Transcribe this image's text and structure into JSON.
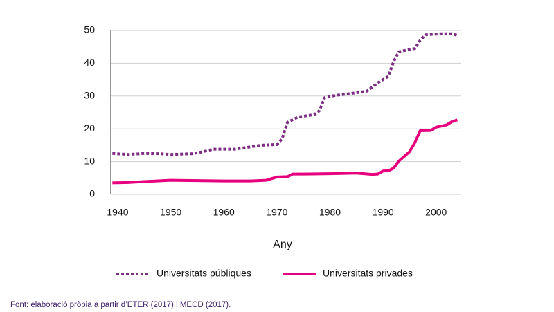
{
  "chart_data": {
    "type": "line",
    "x_label": "Any",
    "footnote": "Font: elaboració pròpia a partir d’ETER (2017) i MECD (2017).",
    "xlim": [
      1938.7,
      2004.6
    ],
    "xticks": [
      1940,
      1950,
      1960,
      1970,
      1980,
      1990,
      2000
    ],
    "ylim": [
      0,
      50
    ],
    "yticks": [
      0,
      10,
      20,
      30,
      40,
      50
    ],
    "grid": true,
    "series": [
      {
        "name": "Universitats públiques",
        "color": "#7b2d82",
        "style": "dotted",
        "x": [
          1939,
          1942,
          1945,
          1948,
          1950,
          1954,
          1956,
          1958,
          1962,
          1965,
          1967,
          1970,
          1971,
          1972,
          1974,
          1977,
          1978,
          1979,
          1981,
          1985,
          1987,
          1989,
          1991,
          1992,
          1993,
          1995,
          1996,
          1997,
          1998,
          2001,
          2003,
          2004
        ],
        "values": [
          12.5,
          12.2,
          12.5,
          12.4,
          12.2,
          12.4,
          13,
          13.8,
          13.8,
          14.5,
          15,
          15.2,
          17,
          22,
          23.6,
          24.3,
          25.5,
          29.5,
          30.2,
          31,
          31.5,
          34,
          36,
          40.5,
          43.5,
          44.2,
          44.5,
          47,
          48.7,
          49,
          49,
          48.5
        ]
      },
      {
        "name": "Universitats privades",
        "color": "#e6007e",
        "style": "solid",
        "x": [
          1939,
          1942,
          1945,
          1950,
          1955,
          1960,
          1965,
          1968,
          1970,
          1972,
          1973,
          1975,
          1980,
          1985,
          1988,
          1989,
          1990,
          1991,
          1992,
          1993,
          1995,
          1996,
          1997,
          1999,
          2000,
          2002,
          2003,
          2004
        ],
        "values": [
          3.5,
          3.6,
          3.9,
          4.3,
          4.2,
          4.1,
          4.1,
          4.3,
          5.3,
          5.4,
          6.2,
          6.2,
          6.3,
          6.5,
          6.1,
          6.2,
          7.1,
          7.2,
          8.0,
          10.2,
          13,
          15.8,
          19.4,
          19.5,
          20.5,
          21.2,
          22.2,
          22.7
        ]
      }
    ]
  }
}
